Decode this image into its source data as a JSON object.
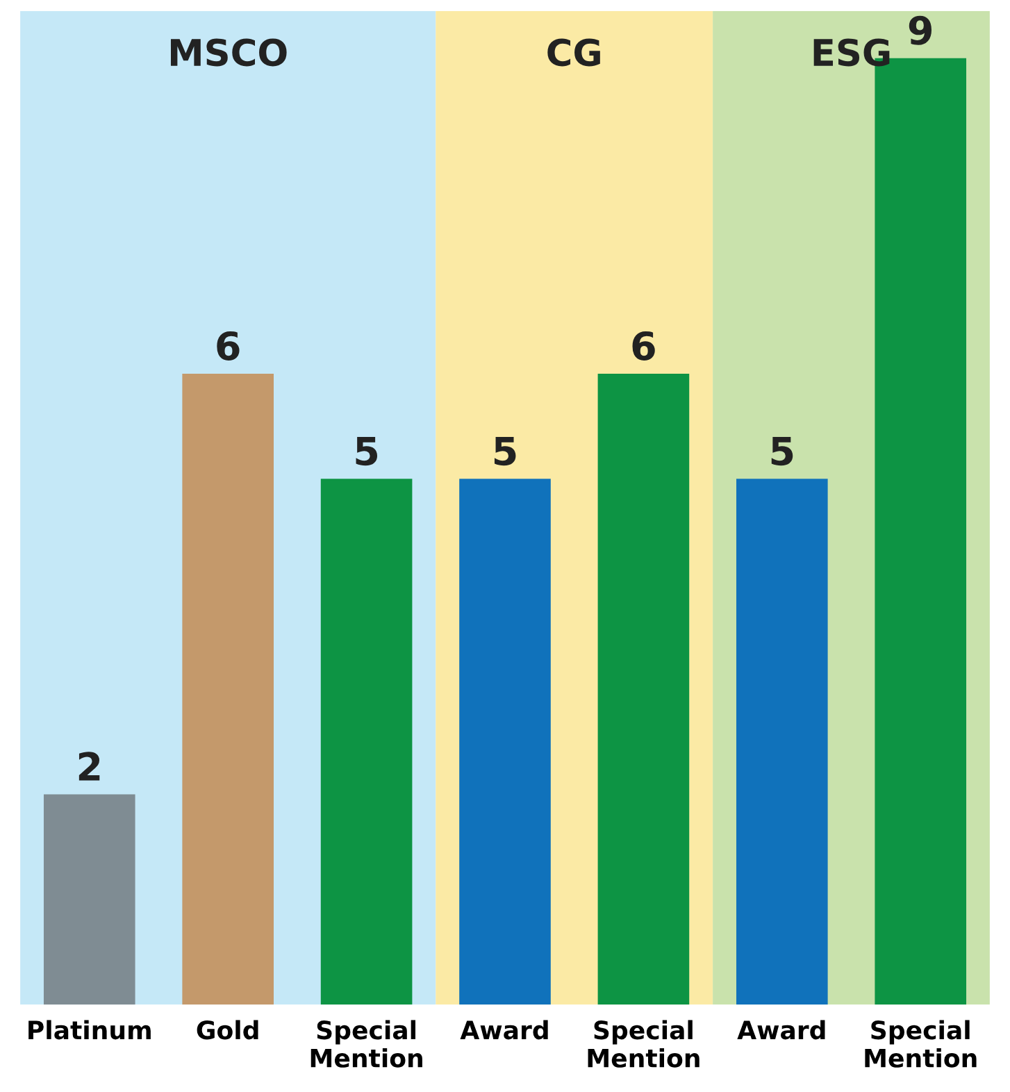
{
  "chart_data": {
    "type": "bar",
    "categories": [
      "Platinum",
      "Gold",
      "Special\nMention",
      "Award",
      "Special\nMention",
      "Award",
      "Special\nMention"
    ],
    "values": [
      2,
      6,
      5,
      5,
      6,
      5,
      9
    ],
    "colors": [
      "#7f8c93",
      "#c4996b",
      "#0d9444",
      "#1072bb",
      "#0d9444",
      "#1072bb",
      "#0d9444"
    ],
    "data_labels": true,
    "tick_labels": "x",
    "bands": [
      {
        "axis": "x",
        "from": "Platinum",
        "to": "Special\nMention",
        "label": "MSCO",
        "color": "#c5e8f7"
      }
    ],
    "annotations": [
      "CG",
      "ESG"
    ]
  }
}
